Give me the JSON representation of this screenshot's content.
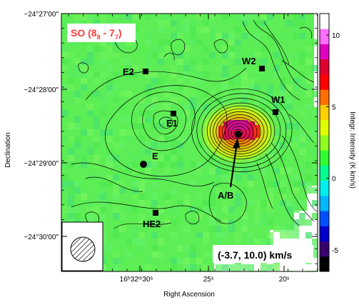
{
  "chart_data": {
    "type": "heatmap",
    "title": "SO (8₈ - 7₇)",
    "title_parts": {
      "prefix": "SO (8",
      "sub1": "8",
      "middle": " - 7",
      "sub2": "7",
      "suffix": ")"
    },
    "velocity_range": "(-3.7, 10.0) km/s",
    "xlabel": "Right Ascension",
    "ylabel": "Declination",
    "x_ticks": [
      {
        "label": "16ʰ32ᵐ30ˢ",
        "value": 30
      },
      {
        "label": "25ˢ",
        "value": 25
      },
      {
        "label": "20ˢ",
        "value": 20
      }
    ],
    "y_ticks": [
      {
        "label": "−24°27′00″",
        "value": 0
      },
      {
        "label": "−24°28′00″",
        "value": -1
      },
      {
        "label": "−24°29′00″",
        "value": -2
      },
      {
        "label": "−24°30′00″",
        "value": -3
      }
    ],
    "colorbar": {
      "label": "Integr. Intensity (K km/s)",
      "range": [
        -6.5,
        11.5
      ],
      "ticks": [
        10,
        5,
        0,
        -5
      ],
      "colors": [
        "#000000",
        "#3a0070",
        "#0000d0",
        "#0050ff",
        "#00b8ff",
        "#00f0f0",
        "#00ff90",
        "#30ff30",
        "#90ff20",
        "#e0ff00",
        "#ffd000",
        "#ff7000",
        "#ff0000",
        "#e00030",
        "#e000c0",
        "#ff70ff",
        "#ffffff"
      ]
    },
    "sources": [
      {
        "label": "E2",
        "marker": "square"
      },
      {
        "label": "E1",
        "marker": "square"
      },
      {
        "label": "E",
        "marker": "circle"
      },
      {
        "label": "HE2",
        "marker": "square"
      },
      {
        "label": "A/B",
        "marker": "circle"
      },
      {
        "label": "W2",
        "marker": "square"
      },
      {
        "label": "W1",
        "marker": "square"
      }
    ],
    "background_color": "#5dee55",
    "peak_color": "#e0106a"
  }
}
